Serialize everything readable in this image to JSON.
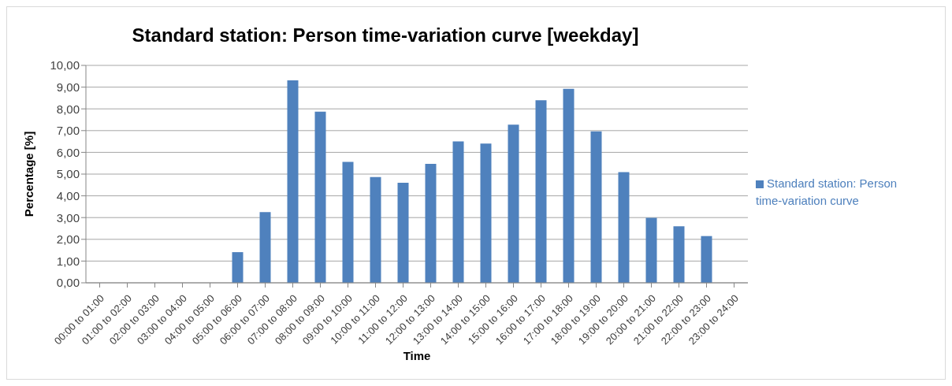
{
  "chart_data": {
    "type": "bar",
    "title": "Standard station: Person time-variation curve [weekday]",
    "xlabel": "Time",
    "ylabel": "Percentage [%]",
    "categories": [
      "00:00 to 01:00",
      "01:00 to 02:00",
      "02:00 to 03:00",
      "03:00 to 04:00",
      "04:00 to 05:00",
      "05:00 to 06:00",
      "06:00 to 07:00",
      "07:00 to 08:00",
      "08:00 to 09:00",
      "09:00 to 10:00",
      "10:00 to 11:00",
      "11:00 to 12:00",
      "12:00 to 13:00",
      "13:00 to 14:00",
      "14:00 to 15:00",
      "15:00 to 16:00",
      "16:00 to 17:00",
      "17:00 to 18:00",
      "18:00 to 19:00",
      "19:00 to 20:00",
      "20:00 to 21:00",
      "21:00 to 22:00",
      "22:00 to 23:00",
      "23:00 to 24:00"
    ],
    "series": [
      {
        "name": "Standard station: Person time-variation curve",
        "color": "#4f81bd",
        "values": [
          0,
          0,
          0,
          0,
          0,
          1.41,
          3.25,
          9.31,
          7.87,
          5.56,
          4.86,
          4.6,
          5.47,
          6.5,
          6.4,
          7.27,
          8.4,
          8.92,
          6.97,
          5.09,
          2.99,
          2.6,
          2.15,
          0
        ]
      }
    ],
    "ylim": [
      0,
      10
    ],
    "yticks": [
      {
        "value": 0,
        "label": "0,00"
      },
      {
        "value": 1,
        "label": "1,00"
      },
      {
        "value": 2,
        "label": "2,00"
      },
      {
        "value": 3,
        "label": "3,00"
      },
      {
        "value": 4,
        "label": "4,00"
      },
      {
        "value": 5,
        "label": "5,00"
      },
      {
        "value": 6,
        "label": "6,00"
      },
      {
        "value": 7,
        "label": "7,00"
      },
      {
        "value": 8,
        "label": "8,00"
      },
      {
        "value": 9,
        "label": "9,00"
      },
      {
        "value": 10,
        "label": "10,00"
      }
    ],
    "grid": "y",
    "legend": "right"
  }
}
